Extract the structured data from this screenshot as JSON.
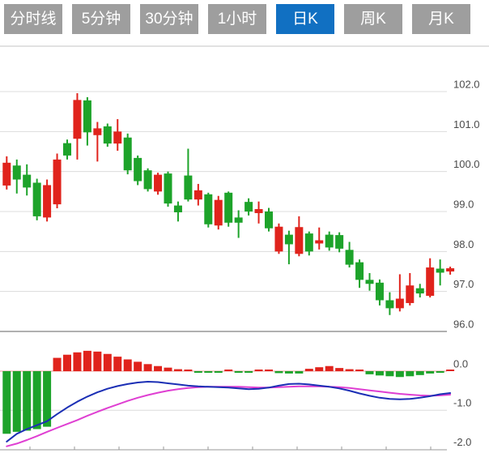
{
  "tabs": {
    "items": [
      {
        "label": "分时线",
        "active": false
      },
      {
        "label": "5分钟",
        "active": false
      },
      {
        "label": "30分钟",
        "active": false
      },
      {
        "label": "1小时",
        "active": false
      },
      {
        "label": "日K",
        "active": true
      },
      {
        "label": "周K",
        "active": false
      },
      {
        "label": "月K",
        "active": false
      }
    ]
  },
  "colors": {
    "tab_bg": "#9e9e9e",
    "tab_active_bg": "#1170c2",
    "tab_text": "#ffffff",
    "up": "#e0231c",
    "down": "#1da32a",
    "dif_line": "#1b2fb5",
    "dea_line": "#df3fd2",
    "grid": "#dcdcdc",
    "axis_text": "#4a4a4a",
    "zero_line": "#e89a9a",
    "border": "#c5c5c5",
    "axis_line": "#999999"
  },
  "chart_data": [
    {
      "type": "candlestick",
      "title": "日K candlestick price panel",
      "ylabels": [
        "102.0",
        "101.0",
        "100.0",
        "99.0",
        "98.0",
        "97.0",
        "96.0"
      ],
      "yvalues": [
        102,
        101,
        100,
        99,
        98,
        97,
        96
      ],
      "ylim": [
        95.9,
        102.2
      ],
      "grid": true,
      "legend": "none",
      "candles": [
        [
          99.65,
          100.38,
          99.55,
          100.22
        ],
        [
          100.15,
          100.3,
          99.45,
          99.8
        ],
        [
          99.92,
          100.18,
          99.4,
          99.6
        ],
        [
          99.72,
          99.82,
          98.78,
          98.88
        ],
        [
          98.85,
          99.8,
          98.75,
          99.66
        ],
        [
          99.18,
          100.45,
          99.08,
          100.3
        ],
        [
          100.71,
          100.8,
          100.3,
          100.4
        ],
        [
          100.82,
          101.96,
          100.3,
          101.79
        ],
        [
          101.78,
          101.86,
          100.65,
          100.98
        ],
        [
          100.91,
          101.24,
          100.25,
          101.08
        ],
        [
          101.13,
          101.2,
          100.62,
          100.7
        ],
        [
          100.7,
          101.31,
          100.52,
          101.0
        ],
        [
          100.85,
          100.95,
          99.93,
          100.03
        ],
        [
          100.34,
          100.4,
          99.66,
          99.76
        ],
        [
          100.03,
          100.08,
          99.5,
          99.56
        ],
        [
          99.5,
          99.97,
          99.42,
          99.92
        ],
        [
          99.95,
          100.0,
          99.12,
          99.2
        ],
        [
          99.15,
          99.25,
          98.75,
          98.98
        ],
        [
          99.9,
          100.57,
          99.25,
          99.3
        ],
        [
          99.3,
          99.69,
          99.15,
          99.53
        ],
        [
          99.43,
          99.47,
          98.6,
          98.68
        ],
        [
          98.65,
          99.39,
          98.55,
          99.29
        ],
        [
          99.47,
          99.5,
          98.62,
          98.72
        ],
        [
          98.85,
          99.03,
          98.34,
          98.72
        ],
        [
          99.24,
          99.33,
          98.9,
          99.0
        ],
        [
          98.96,
          99.25,
          98.7,
          99.06
        ],
        [
          99.0,
          99.09,
          98.5,
          98.58
        ],
        [
          98.0,
          98.7,
          97.94,
          98.62
        ],
        [
          98.42,
          98.52,
          97.68,
          98.18
        ],
        [
          97.94,
          98.88,
          97.88,
          98.61
        ],
        [
          98.45,
          98.5,
          97.9,
          98.0
        ],
        [
          98.2,
          98.6,
          98.05,
          98.28
        ],
        [
          98.42,
          98.5,
          98.02,
          98.1
        ],
        [
          98.41,
          98.48,
          97.98,
          98.07
        ],
        [
          98.04,
          98.24,
          97.6,
          97.67
        ],
        [
          97.73,
          97.8,
          97.09,
          97.29
        ],
        [
          97.29,
          97.46,
          97.02,
          97.19
        ],
        [
          97.22,
          97.3,
          96.65,
          96.78
        ],
        [
          96.78,
          96.98,
          96.41,
          96.58
        ],
        [
          96.58,
          97.43,
          96.5,
          96.82
        ],
        [
          96.71,
          97.46,
          96.65,
          97.15
        ],
        [
          97.08,
          97.19,
          96.85,
          96.95
        ],
        [
          96.89,
          97.83,
          96.85,
          97.6
        ],
        [
          97.57,
          97.8,
          97.15,
          97.47
        ],
        [
          97.5,
          97.62,
          97.42,
          97.58
        ]
      ]
    },
    {
      "type": "macd",
      "title": "MACD indicator panel",
      "ylabels": [
        "0.0",
        "-1.0",
        "-2.0"
      ],
      "yvalues": [
        0,
        -1,
        -2
      ],
      "ylim": [
        -2.1,
        0.6
      ],
      "grid": true,
      "histogram": [
        -1.6,
        -1.55,
        -1.52,
        -1.48,
        -1.42,
        0.34,
        0.42,
        0.48,
        0.52,
        0.5,
        0.44,
        0.37,
        0.3,
        0.24,
        0.18,
        0.13,
        0.09,
        0.05,
        0.03,
        -0.02,
        -0.03,
        -0.03,
        0.02,
        -0.03,
        -0.04,
        0.03,
        0.04,
        -0.05,
        -0.06,
        -0.06,
        0.06,
        0.1,
        0.13,
        0.08,
        0.05,
        0.02,
        -0.08,
        -0.11,
        -0.13,
        -0.15,
        -0.13,
        -0.1,
        -0.06,
        -0.04,
        0.04
      ],
      "dif": [
        -1.8,
        -1.6,
        -1.48,
        -1.38,
        -1.28,
        -1.1,
        -0.93,
        -0.78,
        -0.65,
        -0.54,
        -0.45,
        -0.38,
        -0.33,
        -0.29,
        -0.27,
        -0.28,
        -0.31,
        -0.34,
        -0.37,
        -0.39,
        -0.4,
        -0.41,
        -0.42,
        -0.44,
        -0.46,
        -0.45,
        -0.42,
        -0.37,
        -0.33,
        -0.32,
        -0.34,
        -0.37,
        -0.4,
        -0.44,
        -0.5,
        -0.57,
        -0.63,
        -0.68,
        -0.71,
        -0.72,
        -0.71,
        -0.68,
        -0.64,
        -0.59,
        -0.56
      ],
      "dea": [
        -1.92,
        -1.85,
        -1.76,
        -1.66,
        -1.55,
        -1.45,
        -1.35,
        -1.25,
        -1.14,
        -1.04,
        -0.94,
        -0.85,
        -0.76,
        -0.68,
        -0.61,
        -0.55,
        -0.5,
        -0.46,
        -0.43,
        -0.41,
        -0.4,
        -0.4,
        -0.4,
        -0.4,
        -0.41,
        -0.42,
        -0.42,
        -0.41,
        -0.4,
        -0.39,
        -0.39,
        -0.39,
        -0.4,
        -0.41,
        -0.43,
        -0.46,
        -0.49,
        -0.52,
        -0.55,
        -0.58,
        -0.6,
        -0.62,
        -0.63,
        -0.62,
        -0.6
      ]
    }
  ]
}
